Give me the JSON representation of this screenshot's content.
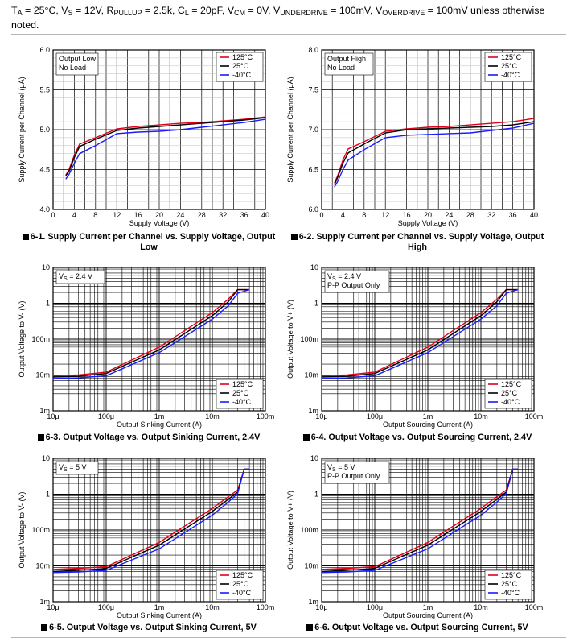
{
  "conditions": {
    "line1_parts": [
      "T",
      "A",
      " = 25°C, V",
      "S",
      " = 12V, R",
      "PULLUP",
      " = 2.5k, C",
      "L",
      " = 20pF, V",
      "CM",
      " = 0V, V",
      "UNDERDRIVE",
      " = 100mV, V",
      "OVERDRIVE",
      " = 100mV unless otherwise"
    ],
    "line2": "noted."
  },
  "legend_labels": [
    "125°C",
    "25°C",
    "-40°C"
  ],
  "colors": {
    "125C": "#e0001a",
    "25C": "#000000",
    "-40C": "#1a1aff"
  },
  "figures": [
    {
      "caption_mark": "图",
      "caption": "6-1. Supply Current per Channel vs. Supply Voltage, Output Low",
      "annotation_lines": [
        "Output Low",
        "No Load"
      ]
    },
    {
      "caption_mark": "图",
      "caption": "6-2. Supply Current per Channel vs. Supply Voltage, Output High",
      "annotation_lines": [
        "Output High",
        "No Load"
      ]
    },
    {
      "caption_mark": "图",
      "caption": "6-3. Output Voltage vs. Output Sinking Current, 2.4V",
      "annotation_lines": [
        "V_S = 2.4 V"
      ]
    },
    {
      "caption_mark": "图",
      "caption": "6-4. Output Voltage vs. Output Sourcing Current, 2.4V",
      "annotation_lines": [
        "V_S = 2.4 V",
        "P-P Output Only"
      ]
    },
    {
      "caption_mark": "图",
      "caption": "6-5. Output Voltage vs. Output Sinking Current, 5V",
      "annotation_lines": [
        "V_S = 5 V"
      ]
    },
    {
      "caption_mark": "图",
      "caption": "6-6. Output Voltage vs. Output Sourcing Current, 5V",
      "annotation_lines": [
        "V_S = 5 V",
        "P-P Output Only"
      ]
    }
  ],
  "chart_data": [
    {
      "type": "line",
      "xlabel": "Supply Voltage (V)",
      "ylabel": "Supply Current per Channel (μA)",
      "xlim": [
        0,
        40
      ],
      "ylim": [
        4.0,
        6.0
      ],
      "xscale": "linear",
      "yscale": "linear",
      "xticks": [
        0,
        4,
        8,
        12,
        16,
        20,
        24,
        28,
        32,
        36,
        40
      ],
      "xtick_labels": [
        "0",
        "4",
        "8",
        "12",
        "16",
        "20",
        "24",
        "28",
        "32",
        "36",
        "40"
      ],
      "yticks": [
        4.0,
        4.5,
        5.0,
        5.5,
        6.0
      ],
      "ytick_labels": [
        "4.0",
        "4.5",
        "5.0",
        "5.5",
        "6.0"
      ],
      "grid": true,
      "legend_position": "top-right",
      "series": [
        {
          "name": "125°C",
          "color": "#e0001a",
          "x": [
            2.4,
            3,
            4,
            5,
            8,
            12,
            16,
            20,
            24,
            28,
            32,
            36,
            40
          ],
          "y": [
            4.43,
            4.5,
            4.68,
            4.82,
            4.9,
            5.01,
            5.04,
            5.06,
            5.08,
            5.09,
            5.11,
            5.13,
            5.16
          ]
        },
        {
          "name": "25°C",
          "color": "#000000",
          "x": [
            2.4,
            3,
            4,
            5,
            8,
            12,
            16,
            20,
            24,
            28,
            32,
            36,
            40
          ],
          "y": [
            4.42,
            4.48,
            4.65,
            4.79,
            4.88,
            4.99,
            5.02,
            5.04,
            5.06,
            5.08,
            5.1,
            5.12,
            5.15
          ]
        },
        {
          "name": "-40°C",
          "color": "#1a1aff",
          "x": [
            2.4,
            3,
            4,
            5,
            8,
            12,
            16,
            20,
            24,
            28,
            32,
            36,
            40
          ],
          "y": [
            4.38,
            4.44,
            4.58,
            4.7,
            4.8,
            4.95,
            4.97,
            4.98,
            5.0,
            5.03,
            5.06,
            5.09,
            5.13
          ]
        }
      ]
    },
    {
      "type": "line",
      "xlabel": "Supply Voltage (V)",
      "ylabel": "Supply Current per Channel (μA)",
      "xlim": [
        0,
        40
      ],
      "ylim": [
        6.0,
        8.0
      ],
      "xscale": "linear",
      "yscale": "linear",
      "xticks": [
        0,
        4,
        8,
        12,
        16,
        20,
        24,
        28,
        32,
        36,
        40
      ],
      "xtick_labels": [
        "0",
        "4",
        "8",
        "12",
        "16",
        "20",
        "24",
        "28",
        "32",
        "36",
        "40"
      ],
      "yticks": [
        6.0,
        6.5,
        7.0,
        7.5,
        8.0
      ],
      "ytick_labels": [
        "6.0",
        "6.5",
        "7.0",
        "7.5",
        "8.0"
      ],
      "grid": true,
      "legend_position": "top-right",
      "series": [
        {
          "name": "125°C",
          "color": "#e0001a",
          "x": [
            2.4,
            3,
            4,
            5,
            8,
            12,
            16,
            20,
            24,
            28,
            32,
            36,
            40
          ],
          "y": [
            6.33,
            6.42,
            6.62,
            6.76,
            6.85,
            6.98,
            7.01,
            7.03,
            7.04,
            7.06,
            7.08,
            7.1,
            7.14
          ]
        },
        {
          "name": "25°C",
          "color": "#000000",
          "x": [
            2.4,
            3,
            4,
            5,
            8,
            12,
            16,
            20,
            24,
            28,
            32,
            36,
            40
          ],
          "y": [
            6.31,
            6.4,
            6.58,
            6.71,
            6.82,
            6.96,
            7.0,
            7.01,
            7.02,
            7.03,
            7.04,
            7.06,
            7.1
          ]
        },
        {
          "name": "-40°C",
          "color": "#1a1aff",
          "x": [
            2.4,
            3,
            4,
            5,
            8,
            12,
            16,
            20,
            24,
            28,
            32,
            36,
            40
          ],
          "y": [
            6.28,
            6.35,
            6.5,
            6.62,
            6.75,
            6.9,
            6.93,
            6.94,
            6.95,
            6.96,
            6.99,
            7.02,
            7.08
          ]
        }
      ]
    },
    {
      "type": "line",
      "xlabel": "Output Sinking Current (A)",
      "ylabel": "Output Voltage to V- (V)",
      "xlim": [
        1e-05,
        0.1
      ],
      "ylim": [
        0.001,
        10
      ],
      "xscale": "log",
      "yscale": "log",
      "xticks": [
        1e-05,
        0.0001,
        0.001,
        0.01,
        0.1
      ],
      "xtick_labels": [
        "10μ",
        "100μ",
        "1m",
        "10m",
        "100m"
      ],
      "yticks": [
        0.001,
        0.01,
        0.1,
        1,
        10
      ],
      "ytick_labels": [
        "1m",
        "10m",
        "100m",
        "1",
        "10"
      ],
      "grid": true,
      "legend_position": "bottom-right",
      "series": [
        {
          "name": "125°C",
          "color": "#e0001a",
          "x": [
            1e-05,
            3e-05,
            0.0001,
            0.001,
            0.01,
            0.02,
            0.03,
            0.05
          ],
          "y": [
            0.0095,
            0.01,
            0.012,
            0.06,
            0.55,
            1.3,
            2.4,
            2.4
          ]
        },
        {
          "name": "25°C",
          "color": "#000000",
          "x": [
            1e-05,
            3e-05,
            0.0001,
            0.001,
            0.01,
            0.02,
            0.03,
            0.05
          ],
          "y": [
            0.0088,
            0.0092,
            0.011,
            0.05,
            0.45,
            1.1,
            2.4,
            2.4
          ]
        },
        {
          "name": "-40°C",
          "color": "#1a1aff",
          "x": [
            1e-05,
            3e-05,
            0.0001,
            0.001,
            0.01,
            0.02,
            0.03,
            0.05
          ],
          "y": [
            0.008,
            0.0083,
            0.0095,
            0.042,
            0.36,
            0.85,
            1.9,
            2.4
          ]
        }
      ]
    },
    {
      "type": "line",
      "xlabel": "Output Sourcing Current (A)",
      "ylabel": "Output Voltage to V+ (V)",
      "xlim": [
        1e-05,
        0.1
      ],
      "ylim": [
        0.001,
        10
      ],
      "xscale": "log",
      "yscale": "log",
      "xticks": [
        1e-05,
        0.0001,
        0.001,
        0.01,
        0.1
      ],
      "xtick_labels": [
        "10μ",
        "100μ",
        "1m",
        "10m",
        "100m"
      ],
      "yticks": [
        0.001,
        0.01,
        0.1,
        1,
        10
      ],
      "ytick_labels": [
        "1m",
        "10m",
        "100m",
        "1",
        "10"
      ],
      "grid": true,
      "legend_position": "bottom-right",
      "series": [
        {
          "name": "125°C",
          "color": "#e0001a",
          "x": [
            1e-05,
            3e-05,
            0.0001,
            0.001,
            0.01,
            0.02,
            0.03,
            0.05
          ],
          "y": [
            0.0095,
            0.01,
            0.012,
            0.06,
            0.55,
            1.3,
            2.4,
            2.4
          ]
        },
        {
          "name": "25°C",
          "color": "#000000",
          "x": [
            1e-05,
            3e-05,
            0.0001,
            0.001,
            0.01,
            0.02,
            0.03,
            0.05
          ],
          "y": [
            0.0088,
            0.0092,
            0.011,
            0.05,
            0.45,
            1.1,
            2.4,
            2.4
          ]
        },
        {
          "name": "-40°C",
          "color": "#1a1aff",
          "x": [
            1e-05,
            3e-05,
            0.0001,
            0.001,
            0.01,
            0.02,
            0.03,
            0.05
          ],
          "y": [
            0.008,
            0.0083,
            0.0095,
            0.042,
            0.36,
            0.85,
            1.9,
            2.4
          ]
        }
      ]
    },
    {
      "type": "line",
      "xlabel": "Output Sinking Current (A)",
      "ylabel": "Output Voltage to V- (V)",
      "xlim": [
        1e-05,
        0.1
      ],
      "ylim": [
        0.001,
        10
      ],
      "xscale": "log",
      "yscale": "log",
      "xticks": [
        1e-05,
        0.0001,
        0.001,
        0.01,
        0.1
      ],
      "xtick_labels": [
        "10μ",
        "100μ",
        "1m",
        "10m",
        "100m"
      ],
      "yticks": [
        0.001,
        0.01,
        0.1,
        1,
        10
      ],
      "ytick_labels": [
        "1m",
        "10m",
        "100m",
        "1",
        "10"
      ],
      "grid": true,
      "legend_position": "bottom-right",
      "series": [
        {
          "name": "125°C",
          "color": "#e0001a",
          "x": [
            1e-05,
            3e-05,
            0.0001,
            0.001,
            0.01,
            0.02,
            0.03,
            0.04,
            0.05
          ],
          "y": [
            0.008,
            0.0085,
            0.0095,
            0.045,
            0.4,
            0.85,
            1.3,
            5,
            5
          ]
        },
        {
          "name": "25°C",
          "color": "#000000",
          "x": [
            1e-05,
            3e-05,
            0.0001,
            0.001,
            0.01,
            0.02,
            0.03,
            0.04,
            0.05
          ],
          "y": [
            0.007,
            0.0075,
            0.0085,
            0.038,
            0.33,
            0.72,
            1.15,
            5,
            5
          ]
        },
        {
          "name": "-40°C",
          "color": "#1a1aff",
          "x": [
            1e-05,
            3e-05,
            0.0001,
            0.001,
            0.01,
            0.02,
            0.03,
            0.04,
            0.05
          ],
          "y": [
            0.0065,
            0.0068,
            0.0075,
            0.03,
            0.26,
            0.6,
            1.05,
            5,
            5
          ]
        }
      ]
    },
    {
      "type": "line",
      "xlabel": "Output Sourcing Current (A)",
      "ylabel": "Output Voltage to V+ (V)",
      "xlim": [
        1e-05,
        0.1
      ],
      "ylim": [
        0.001,
        10
      ],
      "xscale": "log",
      "yscale": "log",
      "xticks": [
        1e-05,
        0.0001,
        0.001,
        0.01,
        0.1
      ],
      "xtick_labels": [
        "10μ",
        "100μ",
        "1m",
        "10m",
        "100m"
      ],
      "yticks": [
        0.001,
        0.01,
        0.1,
        1,
        10
      ],
      "ytick_labels": [
        "1m",
        "10m",
        "100m",
        "1",
        "10"
      ],
      "grid": true,
      "legend_position": "bottom-right",
      "series": [
        {
          "name": "125°C",
          "color": "#e0001a",
          "x": [
            1e-05,
            3e-05,
            0.0001,
            0.001,
            0.01,
            0.02,
            0.03,
            0.04,
            0.05
          ],
          "y": [
            0.008,
            0.0085,
            0.0095,
            0.045,
            0.4,
            0.85,
            1.3,
            5,
            5
          ]
        },
        {
          "name": "25°C",
          "color": "#000000",
          "x": [
            1e-05,
            3e-05,
            0.0001,
            0.001,
            0.01,
            0.02,
            0.03,
            0.04,
            0.05
          ],
          "y": [
            0.007,
            0.0075,
            0.0085,
            0.038,
            0.33,
            0.72,
            1.15,
            5,
            5
          ]
        },
        {
          "name": "-40°C",
          "color": "#1a1aff",
          "x": [
            1e-05,
            3e-05,
            0.0001,
            0.001,
            0.01,
            0.02,
            0.03,
            0.04,
            0.05
          ],
          "y": [
            0.0065,
            0.0068,
            0.0075,
            0.03,
            0.26,
            0.6,
            1.05,
            5,
            5
          ]
        }
      ]
    }
  ]
}
